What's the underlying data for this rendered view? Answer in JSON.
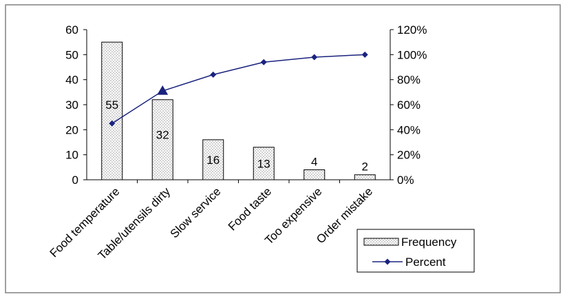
{
  "chart_data": {
    "type": "bar",
    "categories": [
      "Food temperature",
      "Table/utensils dirty",
      "Slow service",
      "Food taste",
      "Too expensive",
      "Order mistake"
    ],
    "series": [
      {
        "name": "Frequency",
        "type": "bar",
        "axis": "left",
        "values": [
          55,
          32,
          16,
          13,
          4,
          2
        ]
      },
      {
        "name": "Percent",
        "type": "line",
        "axis": "right",
        "values": [
          45,
          71,
          84,
          94,
          98,
          100
        ]
      }
    ],
    "data_labels": [
      "55",
      "32",
      "16",
      "13",
      "4",
      "2"
    ],
    "y_left": {
      "min": 0,
      "max": 60,
      "step": 10,
      "ticks": [
        "0",
        "10",
        "20",
        "30",
        "40",
        "50",
        "60"
      ]
    },
    "y_right": {
      "min": 0,
      "max": 120,
      "step": 20,
      "ticks": [
        "0%",
        "20%",
        "40%",
        "60%",
        "80%",
        "100%",
        "120%"
      ]
    },
    "legend": {
      "position": "bottom-right",
      "entries": [
        "Frequency",
        "Percent"
      ]
    },
    "highlighted_point_index": 1,
    "colors": {
      "line": "#1a237e",
      "bar_fill": "#e6e6e6",
      "bar_stroke": "#000000",
      "frame": "#808080",
      "axis": "#000000"
    },
    "grid": false
  }
}
